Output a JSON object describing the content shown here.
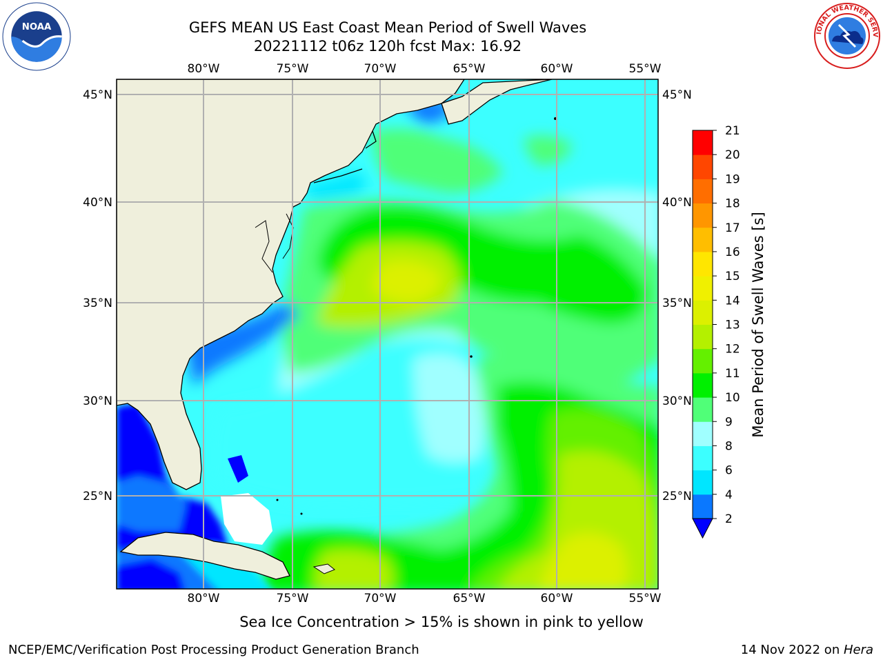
{
  "title": {
    "line1": "GEFS MEAN US East Coast Mean Period of Swell Waves",
    "line2": "20221112 t06z 120h fcst   Max: 16.92"
  },
  "map": {
    "lon_labels": [
      "80°W",
      "75°W",
      "70°W",
      "65°W",
      "60°W",
      "55°W"
    ],
    "lat_labels": [
      "45°N",
      "40°N",
      "35°N",
      "30°N",
      "25°N"
    ],
    "land_color": "#efefdc",
    "grid_color": "#b0b0b0"
  },
  "colorbar": {
    "label": "Mean Period of Swell Waves [s]",
    "ticks": [
      "2",
      "4",
      "6",
      "8",
      "9",
      "10",
      "11",
      "12",
      "13",
      "14",
      "15",
      "16",
      "17",
      "18",
      "19",
      "20",
      "21"
    ],
    "colors": [
      "#0a78ff",
      "#00e6ff",
      "#3cffff",
      "#a0ffff",
      "#50ff78",
      "#00f000",
      "#64f000",
      "#b4f000",
      "#dcf000",
      "#f0f000",
      "#ffe600",
      "#ffbe00",
      "#ff9600",
      "#ff6e00",
      "#ff4600",
      "#ff0000"
    ],
    "under_color": "#0000ff"
  },
  "caption": "Sea Ice Concentration > 15% is shown in pink to yellow",
  "footer": {
    "left": "NCEP/EMC/Verification Post Processing Product Generation Branch",
    "date": "14 Nov 2022 on ",
    "machine": "Hera"
  },
  "logos": {
    "noaa_text": "NOAA",
    "nws_text": "NATIONAL WEATHER SERVICE"
  }
}
